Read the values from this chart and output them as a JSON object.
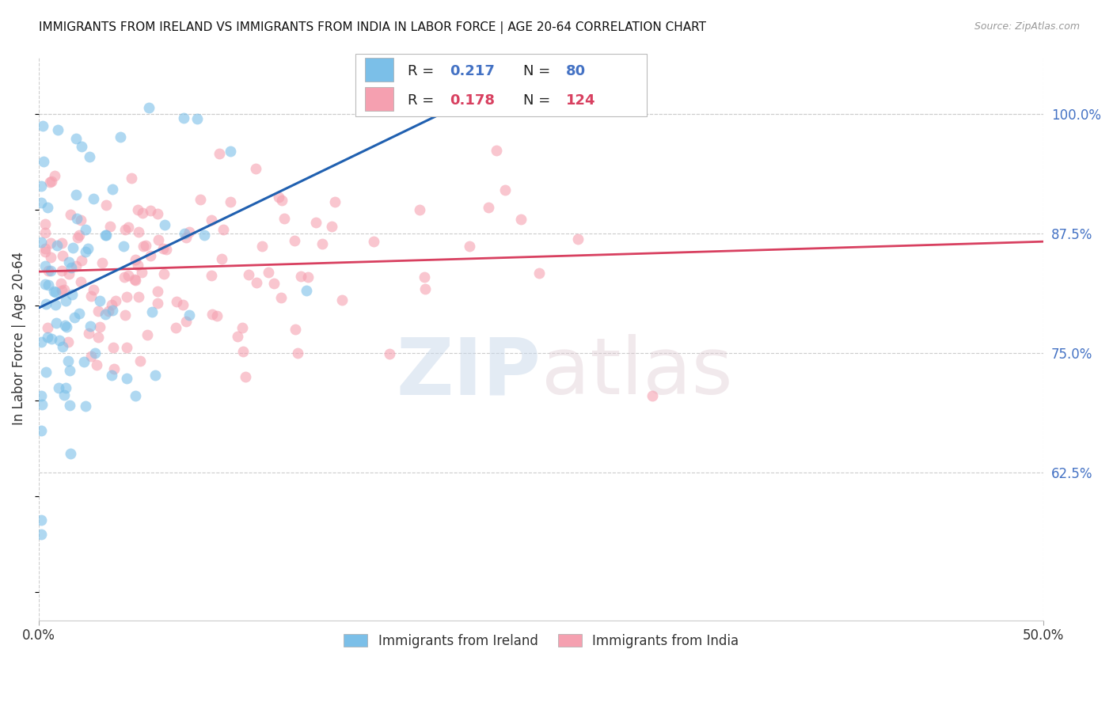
{
  "title": "IMMIGRANTS FROM IRELAND VS IMMIGRANTS FROM INDIA IN LABOR FORCE | AGE 20-64 CORRELATION CHART",
  "source": "Source: ZipAtlas.com",
  "ylabel": "In Labor Force | Age 20-64",
  "xlim": [
    0.0,
    0.5
  ],
  "ylim": [
    0.47,
    1.06
  ],
  "ireland_color": "#7bbfe8",
  "india_color": "#f5a0b0",
  "ireland_trend_color": "#2060b0",
  "india_trend_color": "#d84060",
  "marker_size": 100,
  "ireland_seed": 12,
  "india_seed": 7,
  "background_color": "#ffffff",
  "grid_color": "#cccccc",
  "ytick_color": "#4472c4",
  "legend_box_color": "#dddddd",
  "legend_text_color": "#222222",
  "legend_value_color": "#4472c4"
}
